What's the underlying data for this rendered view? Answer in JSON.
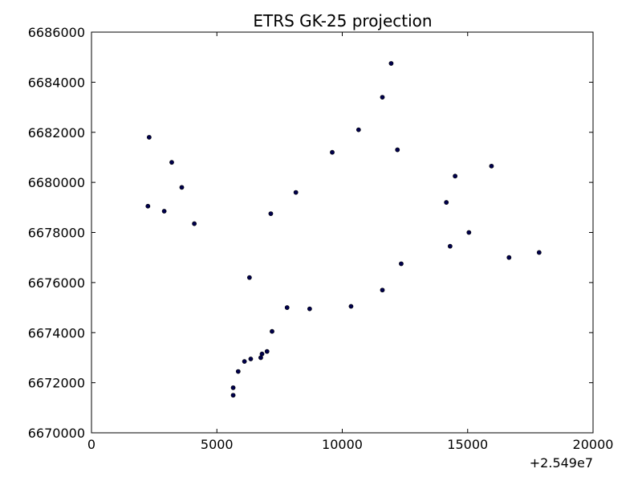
{
  "chart_data": {
    "type": "scatter",
    "title": "ETRS GK-25 projection",
    "xlabel": "",
    "ylabel": "",
    "xlim": [
      0,
      20000
    ],
    "ylim": [
      6670000,
      6686000
    ],
    "x_offset_text": "+2.549e7",
    "xticks": [
      0,
      5000,
      10000,
      15000,
      20000
    ],
    "xtick_labels": [
      "0",
      "5000",
      "10000",
      "15000",
      "20000"
    ],
    "yticks": [
      6670000,
      6672000,
      6674000,
      6676000,
      6678000,
      6680000,
      6682000,
      6684000,
      6686000
    ],
    "ytick_labels": [
      "6670000",
      "6672000",
      "6674000",
      "6676000",
      "6678000",
      "6680000",
      "6682000",
      "6684000",
      "6686000"
    ],
    "grid": false,
    "point_color": "#00004d",
    "points": [
      {
        "x": 2300,
        "y": 6681800
      },
      {
        "x": 3200,
        "y": 6680800
      },
      {
        "x": 3600,
        "y": 6679800
      },
      {
        "x": 2250,
        "y": 6679050
      },
      {
        "x": 2900,
        "y": 6678850
      },
      {
        "x": 4100,
        "y": 6678350
      },
      {
        "x": 7150,
        "y": 6678750
      },
      {
        "x": 8150,
        "y": 6679600
      },
      {
        "x": 9600,
        "y": 6681200
      },
      {
        "x": 10650,
        "y": 6682100
      },
      {
        "x": 11600,
        "y": 6683400
      },
      {
        "x": 11950,
        "y": 6684750
      },
      {
        "x": 12200,
        "y": 6681300
      },
      {
        "x": 14150,
        "y": 6679200
      },
      {
        "x": 14500,
        "y": 6680250
      },
      {
        "x": 15950,
        "y": 6680650
      },
      {
        "x": 15050,
        "y": 6678000
      },
      {
        "x": 14300,
        "y": 6677450
      },
      {
        "x": 16650,
        "y": 6677000
      },
      {
        "x": 17850,
        "y": 6677200
      },
      {
        "x": 12350,
        "y": 6676750
      },
      {
        "x": 11600,
        "y": 6675700
      },
      {
        "x": 10350,
        "y": 6675050
      },
      {
        "x": 8700,
        "y": 6674950
      },
      {
        "x": 7800,
        "y": 6675000
      },
      {
        "x": 6300,
        "y": 6676200
      },
      {
        "x": 7200,
        "y": 6674050
      },
      {
        "x": 7000,
        "y": 6673250
      },
      {
        "x": 6800,
        "y": 6673150
      },
      {
        "x": 6750,
        "y": 6673000
      },
      {
        "x": 6350,
        "y": 6672950
      },
      {
        "x": 6100,
        "y": 6672850
      },
      {
        "x": 5850,
        "y": 6672450
      },
      {
        "x": 5650,
        "y": 6671800
      },
      {
        "x": 5650,
        "y": 6671500
      }
    ]
  }
}
